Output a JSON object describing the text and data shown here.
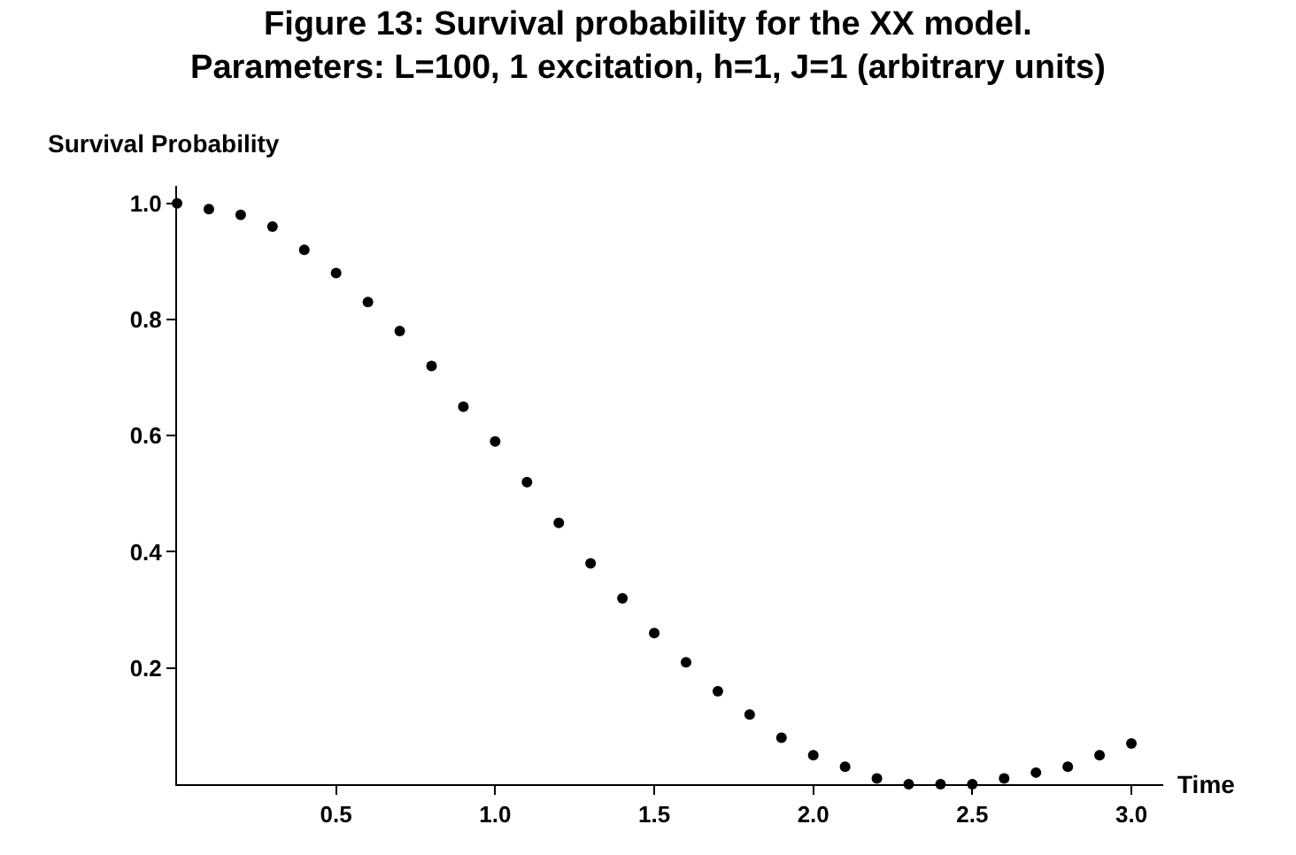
{
  "chart_data": {
    "type": "scatter",
    "title": "Figure 13: Survival probability for the XX model.",
    "subtitle": "Parameters: L=100, 1 excitation, h=1, J=1 (arbitrary units)",
    "xlabel": "Time",
    "ylabel": "Survival Probability",
    "x": [
      0,
      0.1,
      0.2,
      0.3,
      0.4,
      0.5,
      0.6,
      0.7,
      0.8,
      0.9,
      1.0,
      1.1,
      1.2,
      1.3,
      1.4,
      1.5,
      1.6,
      1.7,
      1.8,
      1.9,
      2.0,
      2.1,
      2.2,
      2.3,
      2.4,
      2.5,
      2.6,
      2.7,
      2.8,
      2.9,
      3.0
    ],
    "values": [
      1.0,
      0.99,
      0.98,
      0.96,
      0.92,
      0.88,
      0.83,
      0.78,
      0.72,
      0.65,
      0.59,
      0.52,
      0.45,
      0.38,
      0.32,
      0.26,
      0.21,
      0.16,
      0.12,
      0.08,
      0.05,
      0.03,
      0.01,
      0.0,
      0.0,
      0.0,
      0.01,
      0.02,
      0.03,
      0.05,
      0.07
    ],
    "color": "#000000",
    "marker": "circle",
    "xlim": [
      0,
      3.1
    ],
    "ylim": [
      0,
      1.03
    ],
    "xticks": [
      0.5,
      {
        "value": 1,
        "label": "1.0"
      },
      1.5,
      {
        "value": 2,
        "label": "2.0"
      },
      2.5,
      {
        "value": 3,
        "label": "3.0"
      }
    ],
    "yticks": [
      0.2,
      0.4,
      0.6,
      0.8,
      {
        "value": 1,
        "label": "1.0"
      }
    ]
  }
}
